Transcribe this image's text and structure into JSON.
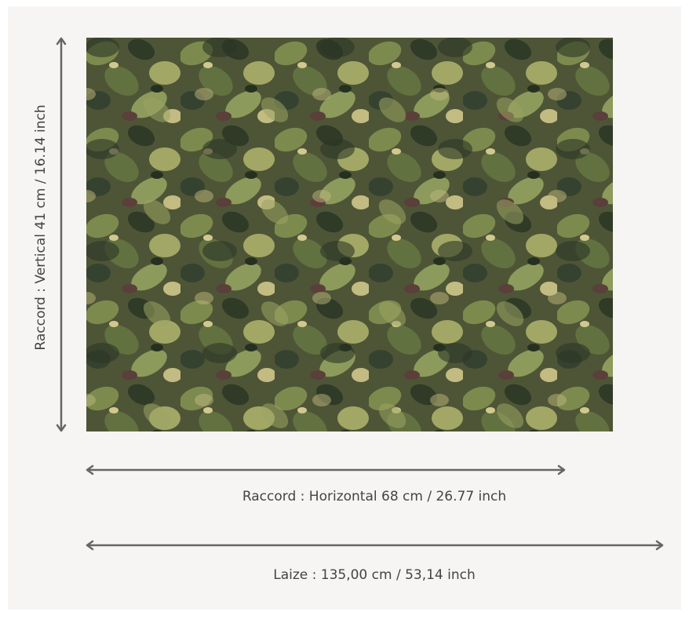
{
  "labels": {
    "vertical": "Raccord : Vertical 41 cm / 16.14 inch",
    "horizontal": "Raccord : Horizontal 68 cm / 26.77 inch",
    "width": "Laize : 135,00 cm / 53,14 inch"
  }
}
